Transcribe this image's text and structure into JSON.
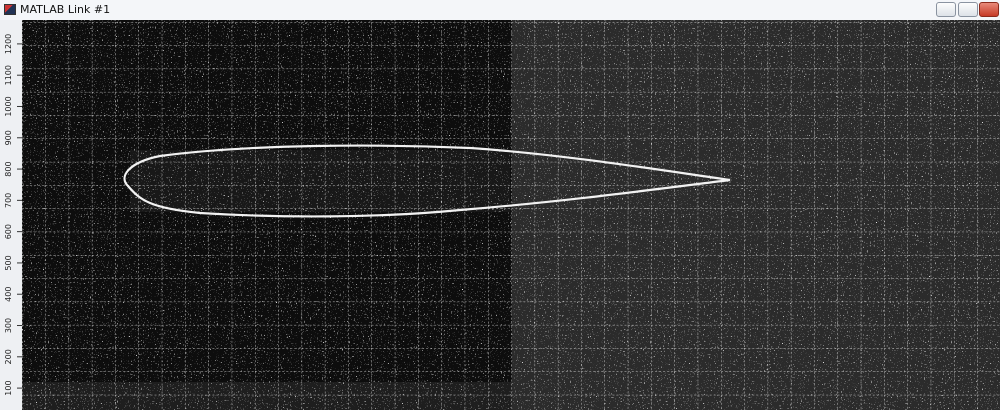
{
  "window": {
    "title": "MATLAB Link #1"
  },
  "axis": {
    "ylim": [
      30,
      1270
    ],
    "yticks": [
      100,
      200,
      300,
      400,
      500,
      600,
      700,
      800,
      900,
      1000,
      1100,
      1200
    ]
  }
}
